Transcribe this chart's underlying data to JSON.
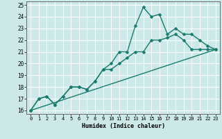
{
  "xlabel": "Humidex (Indice chaleur)",
  "xlim": [
    -0.5,
    23.5
  ],
  "ylim": [
    15.7,
    25.3
  ],
  "xticks": [
    0,
    1,
    2,
    3,
    4,
    5,
    6,
    7,
    8,
    9,
    10,
    11,
    12,
    13,
    14,
    15,
    16,
    17,
    18,
    19,
    20,
    21,
    22,
    23
  ],
  "yticks": [
    16,
    17,
    18,
    19,
    20,
    21,
    22,
    23,
    24,
    25
  ],
  "bg_color": "#cce8e8",
  "grid_color": "#ffffff",
  "line_color": "#1a7a6e",
  "series": [
    {
      "x": [
        0,
        23
      ],
      "y": [
        16.0,
        21.2
      ],
      "marker": null,
      "markersize": 0,
      "linewidth": 1.0
    },
    {
      "x": [
        0,
        1,
        2,
        3,
        4,
        5,
        6,
        7,
        8,
        9,
        10,
        11,
        12,
        13,
        14,
        15,
        16,
        17,
        18,
        19,
        20,
        21,
        22,
        23
      ],
      "y": [
        16.0,
        17.0,
        17.2,
        16.5,
        17.2,
        18.0,
        18.0,
        17.8,
        18.5,
        19.5,
        19.5,
        20.0,
        20.5,
        21.0,
        21.0,
        22.0,
        22.0,
        22.2,
        22.5,
        22.0,
        21.2,
        21.2,
        21.2,
        21.2
      ],
      "marker": "D",
      "markersize": 2.5,
      "linewidth": 1.0
    },
    {
      "x": [
        0,
        1,
        2,
        3,
        4,
        5,
        6,
        7,
        8,
        9,
        10,
        11,
        12,
        13,
        14,
        15,
        16,
        17,
        18,
        19,
        20,
        21,
        22,
        23
      ],
      "y": [
        16.0,
        17.0,
        17.2,
        16.5,
        17.2,
        18.0,
        18.0,
        17.8,
        18.5,
        19.5,
        20.0,
        21.0,
        21.0,
        23.2,
        24.8,
        24.0,
        24.2,
        22.5,
        23.0,
        22.5,
        22.5,
        22.0,
        21.5,
        21.2
      ],
      "marker": "D",
      "markersize": 2.5,
      "linewidth": 1.0
    }
  ]
}
